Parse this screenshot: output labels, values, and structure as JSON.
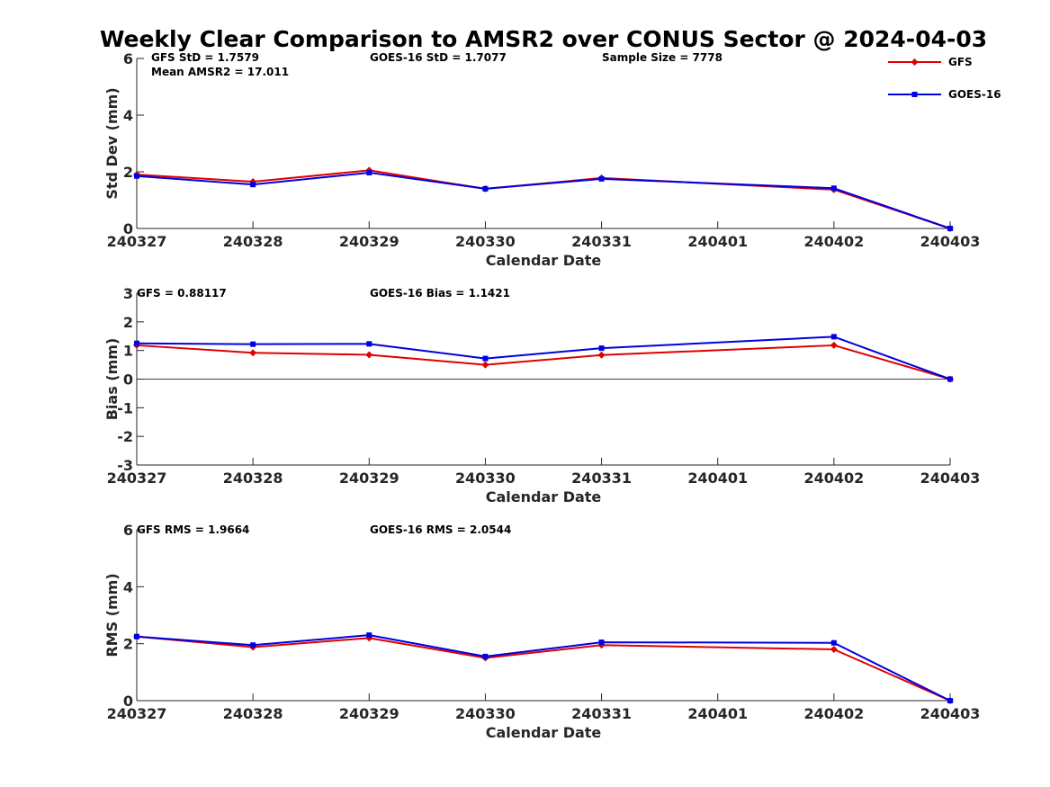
{
  "title": "Weekly Clear Comparison to AMSR2 over CONUS Sector @ 2024-04-03",
  "legend": {
    "position": "top-right",
    "entries": [
      {
        "name": "GFS",
        "color": "#e00000",
        "marker": "diamond"
      },
      {
        "name": "GOES-16",
        "color": "#0000e0",
        "marker": "square"
      }
    ]
  },
  "chart_data": [
    {
      "type": "line",
      "x": [
        "240327",
        "240328",
        "240329",
        "240330",
        "240331",
        "240401",
        "240402",
        "240403"
      ],
      "xlabel": "Calendar Date",
      "ylabel": "Std Dev (mm)",
      "ylim": [
        0,
        6
      ],
      "yticks": [
        "0",
        "2",
        "4",
        "6"
      ],
      "zero_line": false,
      "annotations": [
        "GFS StD = 1.7579",
        "GOES-16 StD = 1.7077",
        "Sample Size = 7778",
        "Mean AMSR2 = 17.011"
      ],
      "series": [
        {
          "name": "GFS",
          "color": "#e00000",
          "marker": "diamond",
          "points": [
            [
              "240327",
              1.9
            ],
            [
              "240328",
              1.65
            ],
            [
              "240329",
              2.05
            ],
            [
              "240330",
              1.4
            ],
            [
              "240331",
              1.78
            ],
            [
              "240402",
              1.37
            ],
            [
              "240403",
              0.0
            ]
          ]
        },
        {
          "name": "GOES-16",
          "color": "#0000e0",
          "marker": "square",
          "points": [
            [
              "240327",
              1.85
            ],
            [
              "240328",
              1.55
            ],
            [
              "240329",
              1.97
            ],
            [
              "240330",
              1.4
            ],
            [
              "240331",
              1.75
            ],
            [
              "240402",
              1.42
            ],
            [
              "240403",
              0.0
            ]
          ]
        }
      ]
    },
    {
      "type": "line",
      "x": [
        "240327",
        "240328",
        "240329",
        "240330",
        "240331",
        "240401",
        "240402",
        "240403"
      ],
      "xlabel": "Calendar Date",
      "ylabel": "Bias (mm)",
      "ylim": [
        -3,
        3
      ],
      "yticks": [
        "-3",
        "-2",
        "-1",
        "0",
        "1",
        "2",
        "3"
      ],
      "zero_line": true,
      "annotations": [
        "GFS = 0.88117",
        "GOES-16 Bias  = 1.1421"
      ],
      "series": [
        {
          "name": "GFS",
          "color": "#e00000",
          "marker": "diamond",
          "points": [
            [
              "240327",
              1.18
            ],
            [
              "240328",
              0.92
            ],
            [
              "240329",
              0.85
            ],
            [
              "240330",
              0.5
            ],
            [
              "240331",
              0.84
            ],
            [
              "240402",
              1.18
            ],
            [
              "240403",
              0.0
            ]
          ]
        },
        {
          "name": "GOES-16",
          "color": "#0000e0",
          "marker": "square",
          "points": [
            [
              "240327",
              1.25
            ],
            [
              "240328",
              1.22
            ],
            [
              "240329",
              1.23
            ],
            [
              "240330",
              0.72
            ],
            [
              "240331",
              1.08
            ],
            [
              "240402",
              1.48
            ],
            [
              "240403",
              0.0
            ]
          ]
        }
      ]
    },
    {
      "type": "line",
      "x": [
        "240327",
        "240328",
        "240329",
        "240330",
        "240331",
        "240401",
        "240402",
        "240403"
      ],
      "xlabel": "Calendar Date",
      "ylabel": "RMS (mm)",
      "ylim": [
        0,
        6
      ],
      "yticks": [
        "0",
        "2",
        "4",
        "6"
      ],
      "zero_line": false,
      "annotations": [
        "GFS RMS = 1.9664",
        "GOES-16 RMS = 2.0544"
      ],
      "series": [
        {
          "name": "GFS",
          "color": "#e00000",
          "marker": "diamond",
          "points": [
            [
              "240327",
              2.25
            ],
            [
              "240328",
              1.88
            ],
            [
              "240329",
              2.2
            ],
            [
              "240330",
              1.5
            ],
            [
              "240331",
              1.95
            ],
            [
              "240402",
              1.8
            ],
            [
              "240403",
              0.0
            ]
          ]
        },
        {
          "name": "GOES-16",
          "color": "#0000e0",
          "marker": "square",
          "points": [
            [
              "240327",
              2.25
            ],
            [
              "240328",
              1.95
            ],
            [
              "240329",
              2.3
            ],
            [
              "240330",
              1.55
            ],
            [
              "240331",
              2.05
            ],
            [
              "240402",
              2.03
            ],
            [
              "240403",
              0.0
            ]
          ]
        }
      ]
    }
  ]
}
